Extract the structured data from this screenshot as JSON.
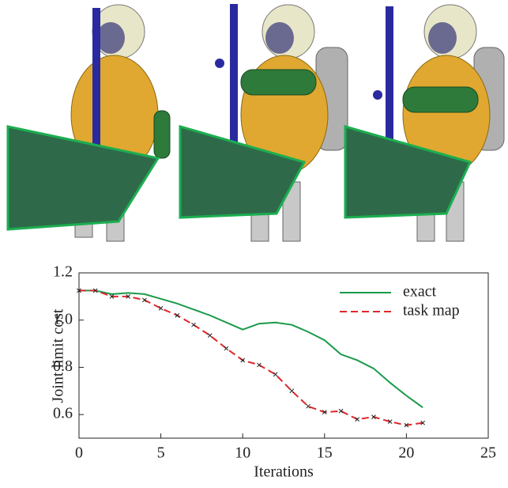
{
  "chart_data": {
    "type": "line",
    "x_label": "Iterations",
    "y_label": "Joint limit cost",
    "x": [
      0,
      1,
      2,
      3,
      4,
      5,
      6,
      7,
      8,
      9,
      10,
      11,
      12,
      13,
      14,
      15,
      16,
      17,
      18,
      19,
      20,
      21
    ],
    "series": [
      {
        "name": "exact",
        "color": "#1a9a4a",
        "dash": false,
        "markers": false,
        "values": [
          1.125,
          1.125,
          1.11,
          1.115,
          1.11,
          1.09,
          1.07,
          1.045,
          1.02,
          0.99,
          0.96,
          0.985,
          0.99,
          0.98,
          0.95,
          0.915,
          0.855,
          0.83,
          0.795,
          0.735,
          0.68,
          0.63
        ]
      },
      {
        "name": "task map",
        "color": "#e0262b",
        "dash": true,
        "markers": true,
        "values": [
          1.125,
          1.125,
          1.1,
          1.1,
          1.085,
          1.05,
          1.02,
          0.98,
          0.935,
          0.88,
          0.83,
          0.81,
          0.77,
          0.7,
          0.635,
          0.61,
          0.615,
          0.58,
          0.59,
          0.57,
          0.555,
          0.565
        ]
      }
    ],
    "xlim": [
      0,
      25
    ],
    "xticks": [
      0,
      5,
      10,
      15,
      20,
      25
    ],
    "ylim": [
      0.5,
      1.2
    ],
    "yticks": [
      0.6,
      0.8,
      {
        "value": 1,
        "label": "1.0"
      },
      1.2
    ],
    "legend": "upper-right"
  }
}
